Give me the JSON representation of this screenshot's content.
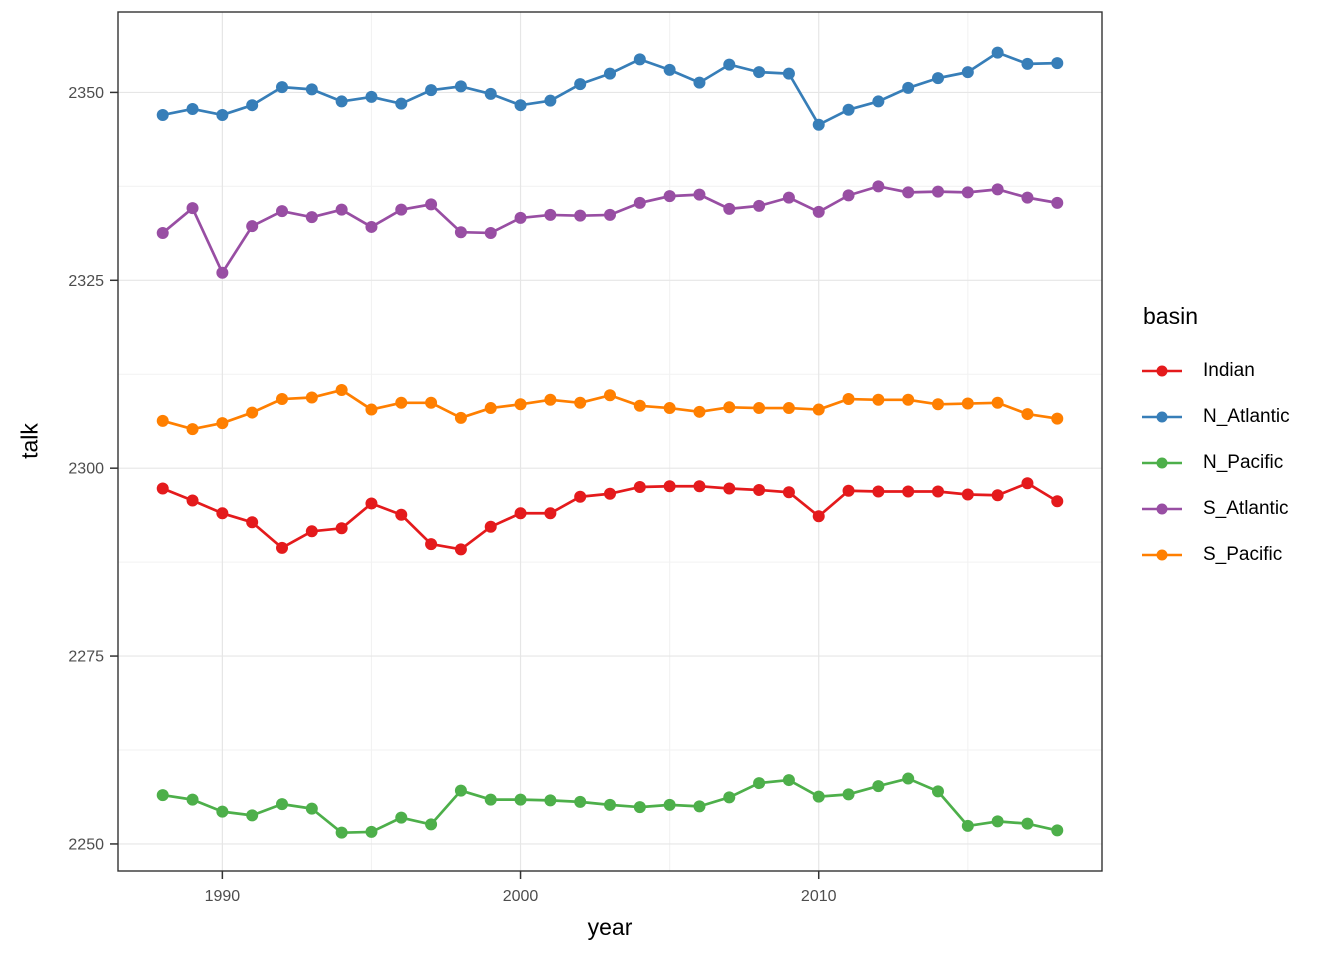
{
  "chart_data": {
    "type": "line",
    "title": "",
    "xlabel": "year",
    "ylabel": "talk",
    "legend_title": "basin",
    "legend_position": "right",
    "grid": true,
    "x": [
      1988,
      1989,
      1990,
      1991,
      1992,
      1993,
      1994,
      1995,
      1996,
      1997,
      1998,
      1999,
      2000,
      2001,
      2002,
      2003,
      2004,
      2005,
      2006,
      2007,
      2008,
      2009,
      2010,
      2011,
      2012,
      2013,
      2014,
      2015,
      2016,
      2017,
      2018
    ],
    "x_domain": [
      1986.5,
      2019.5
    ],
    "y_domain": [
      2246.4,
      2360.7
    ],
    "x_ticks": {
      "major": [
        1990,
        2000,
        2010
      ],
      "labels": [
        "1990",
        "2000",
        "2010"
      ],
      "minor": [
        1995,
        2005,
        2015
      ]
    },
    "y_ticks": {
      "major": [
        2250,
        2275,
        2300,
        2325,
        2350
      ],
      "labels": [
        "2250",
        "2275",
        "2300",
        "2325",
        "2350"
      ],
      "minor": [
        2262.5,
        2287.5,
        2312.5,
        2337.5
      ]
    },
    "series": [
      {
        "name": "Indian",
        "color": "#E41A1C",
        "values": [
          2297.3,
          2295.7,
          2294.0,
          2292.8,
          2289.4,
          2291.6,
          2292.0,
          2295.3,
          2293.8,
          2289.9,
          2289.2,
          2292.2,
          2294.0,
          2294.0,
          2296.2,
          2296.6,
          2297.5,
          2297.6,
          2297.6,
          2297.3,
          2297.1,
          2296.8,
          2293.6,
          2297.0,
          2296.9,
          2296.9,
          2296.9,
          2296.5,
          2296.4,
          2298.0,
          2295.6
        ]
      },
      {
        "name": "N_Atlantic",
        "color": "#377EB8",
        "values": [
          2347.0,
          2347.8,
          2347.0,
          2348.3,
          2350.7,
          2350.4,
          2348.8,
          2349.4,
          2348.5,
          2350.3,
          2350.8,
          2349.8,
          2348.3,
          2348.9,
          2351.1,
          2352.5,
          2354.4,
          2353.0,
          2351.3,
          2353.7,
          2352.7,
          2352.5,
          2345.7,
          2347.7,
          2348.8,
          2350.6,
          2351.9,
          2352.7,
          2355.3,
          2353.8,
          2353.9
        ]
      },
      {
        "name": "N_Pacific",
        "color": "#4DAF4A",
        "values": [
          2256.5,
          2255.9,
          2254.3,
          2253.8,
          2255.3,
          2254.7,
          2251.5,
          2251.6,
          2253.5,
          2252.6,
          2257.1,
          2255.9,
          2255.9,
          2255.8,
          2255.6,
          2255.2,
          2254.9,
          2255.2,
          2255.0,
          2256.2,
          2258.1,
          2258.5,
          2256.3,
          2256.6,
          2257.7,
          2258.7,
          2257.0,
          2252.4,
          2253.0,
          2252.7,
          2251.8
        ]
      },
      {
        "name": "S_Atlantic",
        "color": "#984EA3",
        "values": [
          2331.3,
          2334.6,
          2326.0,
          2332.2,
          2334.2,
          2333.4,
          2334.4,
          2332.1,
          2334.4,
          2335.1,
          2331.4,
          2331.3,
          2333.3,
          2333.7,
          2333.6,
          2333.7,
          2335.3,
          2336.2,
          2336.4,
          2334.5,
          2334.9,
          2336.0,
          2334.1,
          2336.3,
          2337.5,
          2336.7,
          2336.8,
          2336.7,
          2337.1,
          2336.0,
          2335.3
        ]
      },
      {
        "name": "S_Pacific",
        "color": "#FF7F00",
        "values": [
          2306.3,
          2305.2,
          2306.0,
          2307.4,
          2309.2,
          2309.4,
          2310.4,
          2307.8,
          2308.7,
          2308.7,
          2306.7,
          2308.0,
          2308.5,
          2309.1,
          2308.7,
          2309.7,
          2308.3,
          2308.0,
          2307.5,
          2308.1,
          2308.0,
          2308.0,
          2307.8,
          2309.2,
          2309.1,
          2309.1,
          2308.5,
          2308.6,
          2308.7,
          2307.2,
          2306.6
        ]
      }
    ]
  },
  "theme": {
    "background": "#FFFFFF",
    "panel_border": "#333333",
    "grid_major": "#E6E6E6",
    "grid_minor": "#F2F2F2",
    "tick_color": "#333333",
    "tick_label_color": "#4D4D4D",
    "axis_title_color": "#000000"
  }
}
